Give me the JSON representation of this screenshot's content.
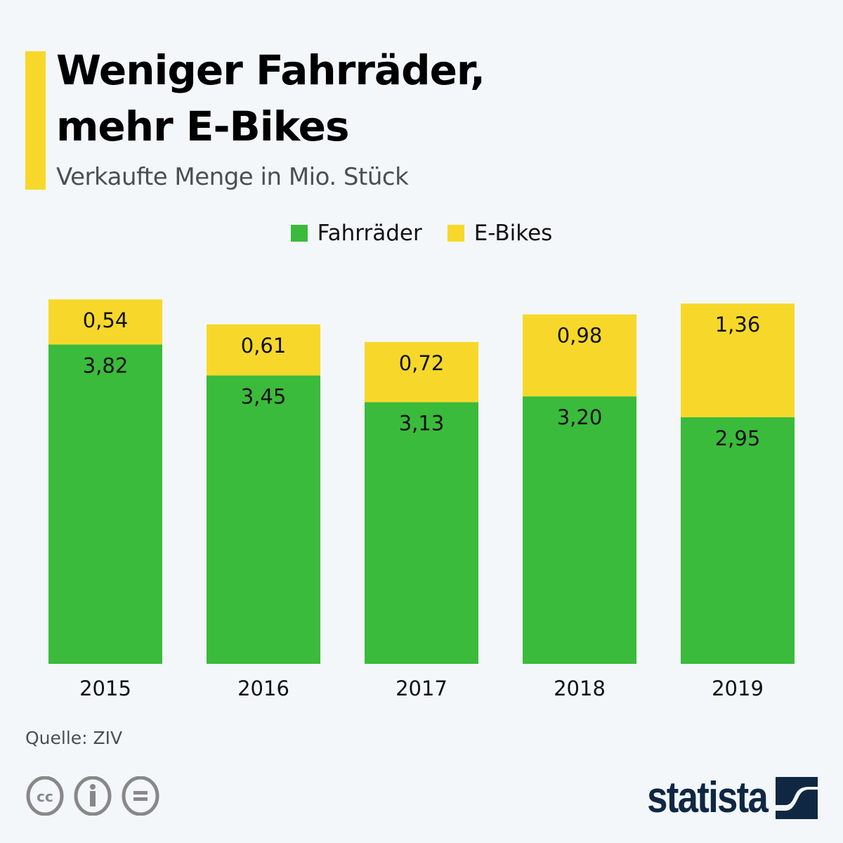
{
  "header": {
    "title_line1": "Weniger Fahrräder,",
    "title_line2": "mehr E-Bikes",
    "subtitle": "Verkaufte Menge in Mio. Stück"
  },
  "legend": [
    {
      "label": "Fahrräder",
      "color": "#3bbb3b"
    },
    {
      "label": "E-Bikes",
      "color": "#f7d82a"
    }
  ],
  "chart_data": {
    "type": "bar",
    "stacked": true,
    "title": "Weniger Fahrräder, mehr E-Bikes",
    "subtitle": "Verkaufte Menge in Mio. Stück",
    "xlabel": "",
    "ylabel": "",
    "categories": [
      "2015",
      "2016",
      "2017",
      "2018",
      "2019"
    ],
    "series": [
      {
        "name": "Fahrräder",
        "color": "#3bbb3b",
        "values": [
          3.82,
          3.45,
          3.13,
          3.2,
          2.95
        ],
        "labels": [
          "3,82",
          "3,45",
          "3,13",
          "3,20",
          "2,95"
        ]
      },
      {
        "name": "E-Bikes",
        "color": "#f7d82a",
        "values": [
          0.54,
          0.61,
          0.72,
          0.98,
          1.36
        ],
        "labels": [
          "0,54",
          "0,61",
          "0,72",
          "0,98",
          "1,36"
        ]
      }
    ],
    "ylim": [
      0,
      4.36
    ],
    "grid": false,
    "legend_position": "top-center"
  },
  "footer": {
    "source": "Quelle: ZIV",
    "license_icons": [
      "cc-icon",
      "attribution-icon",
      "no-derivatives-icon"
    ],
    "brand": "statista",
    "brand_color": "#0f2742"
  }
}
